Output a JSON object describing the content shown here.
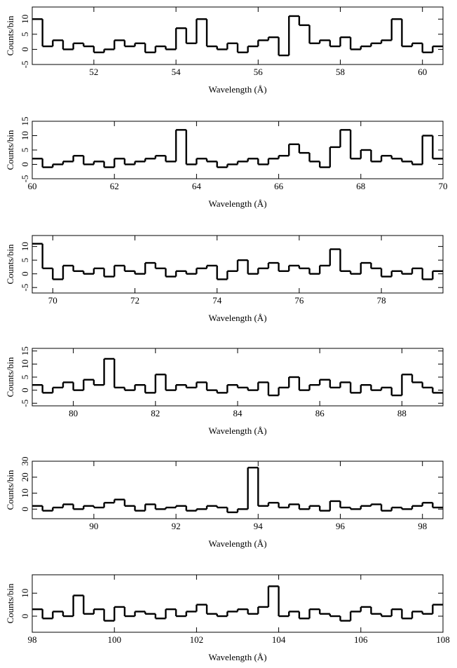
{
  "chart_data": [
    {
      "type": "histogram",
      "xlabel": "Wavelength (Å)",
      "ylabel": "Counts/bin",
      "color": "#000000",
      "xlim": [
        50.5,
        60.5
      ],
      "ylim": [
        -5,
        14
      ],
      "xticks": [
        52,
        54,
        56,
        58,
        60
      ],
      "yticks": [
        -5,
        0,
        5,
        10
      ],
      "bins": [
        50.5,
        50.75,
        51,
        51.25,
        51.5,
        51.75,
        52,
        52.25,
        52.5,
        52.75,
        53,
        53.25,
        53.5,
        53.75,
        54,
        54.25,
        54.5,
        54.75,
        55,
        55.25,
        55.5,
        55.75,
        56,
        56.25,
        56.5,
        56.75,
        57,
        57.25,
        57.5,
        57.75,
        58,
        58.25,
        58.5,
        58.75,
        59,
        59.25,
        59.5,
        59.75,
        60,
        60.25,
        60.5
      ],
      "values": [
        10,
        1,
        3,
        0,
        2,
        1,
        -1,
        0,
        3,
        1,
        2,
        -1,
        1,
        0,
        7,
        2,
        10,
        1,
        0,
        2,
        -1,
        1,
        3,
        4,
        -2,
        11,
        8,
        2,
        3,
        1,
        4,
        0,
        1,
        2,
        3,
        10,
        1,
        2,
        -1,
        1
      ]
    },
    {
      "type": "histogram",
      "xlabel": "Wavelength (Å)",
      "ylabel": "Counts/bin",
      "color": "#000000",
      "xlim": [
        60,
        70
      ],
      "ylim": [
        -5,
        15
      ],
      "xticks": [
        60,
        62,
        64,
        66,
        68,
        70
      ],
      "yticks": [
        -5,
        0,
        5,
        10,
        15
      ],
      "bins": [
        60,
        60.25,
        60.5,
        60.75,
        61,
        61.25,
        61.5,
        61.75,
        62,
        62.25,
        62.5,
        62.75,
        63,
        63.25,
        63.5,
        63.75,
        64,
        64.25,
        64.5,
        64.75,
        65,
        65.25,
        65.5,
        65.75,
        66,
        66.25,
        66.5,
        66.75,
        67,
        67.25,
        67.5,
        67.75,
        68,
        68.25,
        68.5,
        68.75,
        69,
        69.25,
        69.5,
        69.75,
        70
      ],
      "values": [
        2,
        -1,
        0,
        1,
        3,
        0,
        1,
        -1,
        2,
        0,
        1,
        2,
        3,
        1,
        12,
        0,
        2,
        1,
        -1,
        0,
        1,
        2,
        0,
        2,
        3,
        7,
        4,
        1,
        -1,
        6,
        12,
        2,
        5,
        1,
        3,
        2,
        1,
        0,
        10,
        2
      ]
    },
    {
      "type": "histogram",
      "xlabel": "Wavelength (Å)",
      "ylabel": "Counts/bin",
      "color": "#000000",
      "xlim": [
        69.5,
        79.5
      ],
      "ylim": [
        -7,
        14
      ],
      "xticks": [
        70,
        72,
        74,
        76,
        78
      ],
      "yticks": [
        -5,
        0,
        5,
        10
      ],
      "bins": [
        69.5,
        69.75,
        70,
        70.25,
        70.5,
        70.75,
        71,
        71.25,
        71.5,
        71.75,
        72,
        72.25,
        72.5,
        72.75,
        73,
        73.25,
        73.5,
        73.75,
        74,
        74.25,
        74.5,
        74.75,
        75,
        75.25,
        75.5,
        75.75,
        76,
        76.25,
        76.5,
        76.75,
        77,
        77.25,
        77.5,
        77.75,
        78,
        78.25,
        78.5,
        78.75,
        79,
        79.25,
        79.5
      ],
      "values": [
        11,
        2,
        -2,
        3,
        1,
        0,
        2,
        -1,
        3,
        1,
        0,
        4,
        2,
        -1,
        1,
        0,
        2,
        3,
        -2,
        1,
        5,
        0,
        2,
        4,
        1,
        3,
        2,
        0,
        3,
        9,
        1,
        0,
        4,
        2,
        -1,
        1,
        0,
        2,
        -2,
        1
      ]
    },
    {
      "type": "histogram",
      "xlabel": "Wavelength (Å)",
      "ylabel": "Counts/bin",
      "color": "#000000",
      "xlim": [
        79,
        89
      ],
      "ylim": [
        -6,
        16
      ],
      "xticks": [
        80,
        82,
        84,
        86,
        88
      ],
      "yticks": [
        -5,
        0,
        5,
        10,
        15
      ],
      "bins": [
        79,
        79.25,
        79.5,
        79.75,
        80,
        80.25,
        80.5,
        80.75,
        81,
        81.25,
        81.5,
        81.75,
        82,
        82.25,
        82.5,
        82.75,
        83,
        83.25,
        83.5,
        83.75,
        84,
        84.25,
        84.5,
        84.75,
        85,
        85.25,
        85.5,
        85.75,
        86,
        86.25,
        86.5,
        86.75,
        87,
        87.25,
        87.5,
        87.75,
        88,
        88.25,
        88.5,
        88.75,
        89
      ],
      "values": [
        2,
        -1,
        1,
        3,
        0,
        4,
        2,
        12,
        1,
        0,
        2,
        -1,
        6,
        0,
        2,
        1,
        3,
        0,
        -1,
        2,
        1,
        0,
        3,
        -2,
        1,
        5,
        0,
        2,
        4,
        1,
        3,
        -1,
        2,
        0,
        1,
        -2,
        6,
        3,
        1,
        -1
      ]
    },
    {
      "type": "histogram",
      "xlabel": "Wavelength (Å)",
      "ylabel": "Counts/bin",
      "color": "#000000",
      "xlim": [
        88.5,
        98.5
      ],
      "ylim": [
        -6,
        30
      ],
      "xticks": [
        90,
        92,
        94,
        96,
        98
      ],
      "yticks": [
        0,
        10,
        20,
        30
      ],
      "bins": [
        88.5,
        88.75,
        89,
        89.25,
        89.5,
        89.75,
        90,
        90.25,
        90.5,
        90.75,
        91,
        91.25,
        91.5,
        91.75,
        92,
        92.25,
        92.5,
        92.75,
        93,
        93.25,
        93.5,
        93.75,
        94,
        94.25,
        94.5,
        94.75,
        95,
        95.25,
        95.5,
        95.75,
        96,
        96.25,
        96.5,
        96.75,
        97,
        97.25,
        97.5,
        97.75,
        98,
        98.25,
        98.5
      ],
      "values": [
        2,
        -1,
        1,
        3,
        0,
        2,
        1,
        4,
        6,
        2,
        -1,
        3,
        0,
        1,
        2,
        -1,
        0,
        2,
        1,
        -2,
        0,
        26,
        2,
        4,
        1,
        3,
        0,
        2,
        -1,
        5,
        1,
        0,
        2,
        3,
        -1,
        1,
        0,
        2,
        4,
        1
      ]
    },
    {
      "type": "histogram",
      "xlabel": "Wavelength (Å)",
      "ylabel": "Counts/bin",
      "color": "#000000",
      "xlim": [
        98,
        108
      ],
      "ylim": [
        -7,
        18
      ],
      "xticks": [
        98,
        100,
        102,
        104,
        106,
        108
      ],
      "yticks": [
        0,
        10
      ],
      "bins": [
        98,
        98.25,
        98.5,
        98.75,
        99,
        99.25,
        99.5,
        99.75,
        100,
        100.25,
        100.5,
        100.75,
        101,
        101.25,
        101.5,
        101.75,
        102,
        102.25,
        102.5,
        102.75,
        103,
        103.25,
        103.5,
        103.75,
        104,
        104.25,
        104.5,
        104.75,
        105,
        105.25,
        105.5,
        105.75,
        106,
        106.25,
        106.5,
        106.75,
        107,
        107.25,
        107.5,
        107.75,
        108
      ],
      "values": [
        3,
        -1,
        2,
        0,
        9,
        1,
        3,
        -2,
        4,
        0,
        2,
        1,
        -1,
        3,
        0,
        2,
        5,
        1,
        0,
        2,
        3,
        1,
        4,
        13,
        0,
        2,
        -1,
        3,
        1,
        0,
        -2,
        2,
        4,
        1,
        0,
        3,
        -1,
        2,
        1,
        5
      ]
    }
  ]
}
